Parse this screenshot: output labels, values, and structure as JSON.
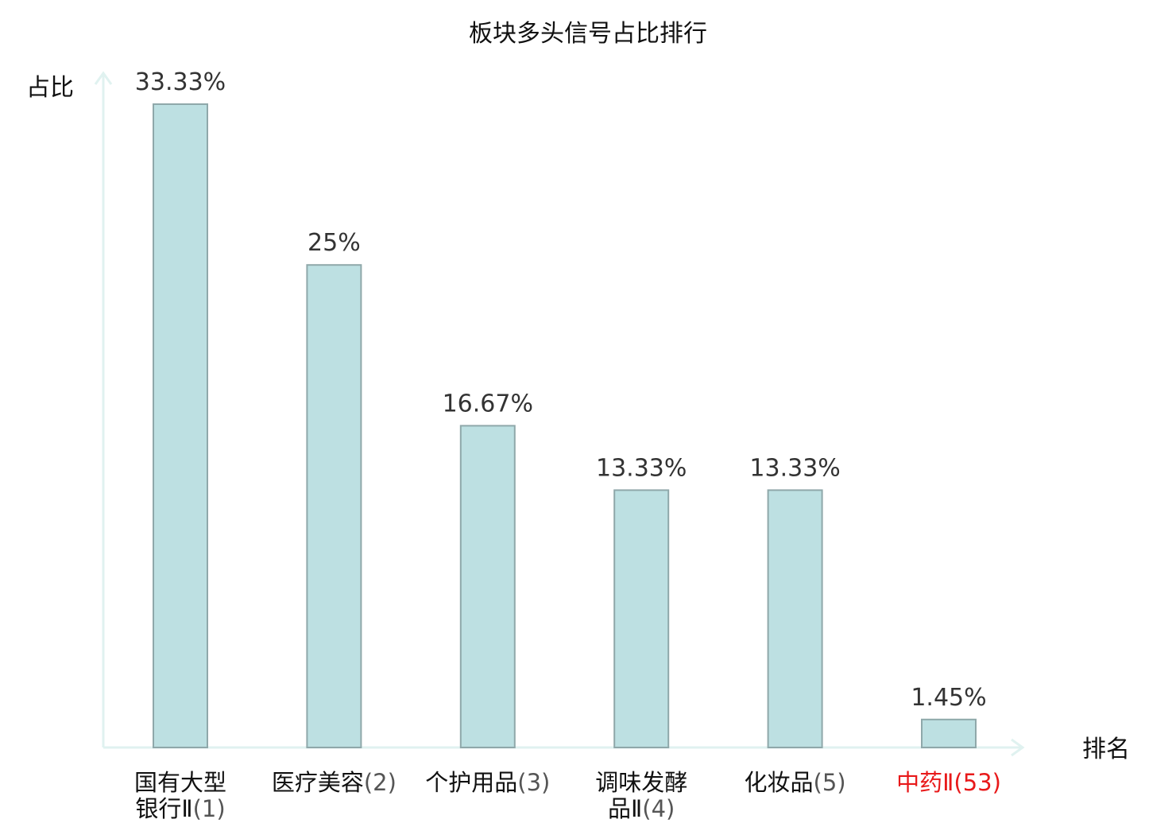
{
  "chart_data": {
    "type": "bar",
    "title": "板块多头信号占比排行",
    "ylabel": "占比",
    "xlabel": "排名",
    "ylim": [
      0,
      35
    ],
    "categories": [
      {
        "name_lines": [
          "国有大型",
          "银行Ⅱ"
        ],
        "rank": "(1)",
        "highlight": false
      },
      {
        "name_lines": [
          "医疗美容"
        ],
        "rank": "(2)",
        "highlight": false
      },
      {
        "name_lines": [
          "个护用品"
        ],
        "rank": "(3)",
        "highlight": false
      },
      {
        "name_lines": [
          "调味发酵",
          "品Ⅱ"
        ],
        "rank": "(4)",
        "highlight": false
      },
      {
        "name_lines": [
          "化妆品"
        ],
        "rank": "(5)",
        "highlight": false
      },
      {
        "name_lines": [
          "中药Ⅱ"
        ],
        "rank": "(53)",
        "highlight": true
      }
    ],
    "values": [
      33.33,
      25,
      16.67,
      13.33,
      13.33,
      1.45
    ],
    "value_labels": [
      "33.33%",
      "25%",
      "16.67%",
      "13.33%",
      "13.33%",
      "1.45%"
    ],
    "grid": false,
    "legend": "none",
    "colors": {
      "bar_fill": "#bde0e2",
      "bar_stroke": "#8fa8aa",
      "axis": "#e0f2f0",
      "highlight": "#e8191a",
      "label": "#111111",
      "rank": "#555555"
    }
  }
}
